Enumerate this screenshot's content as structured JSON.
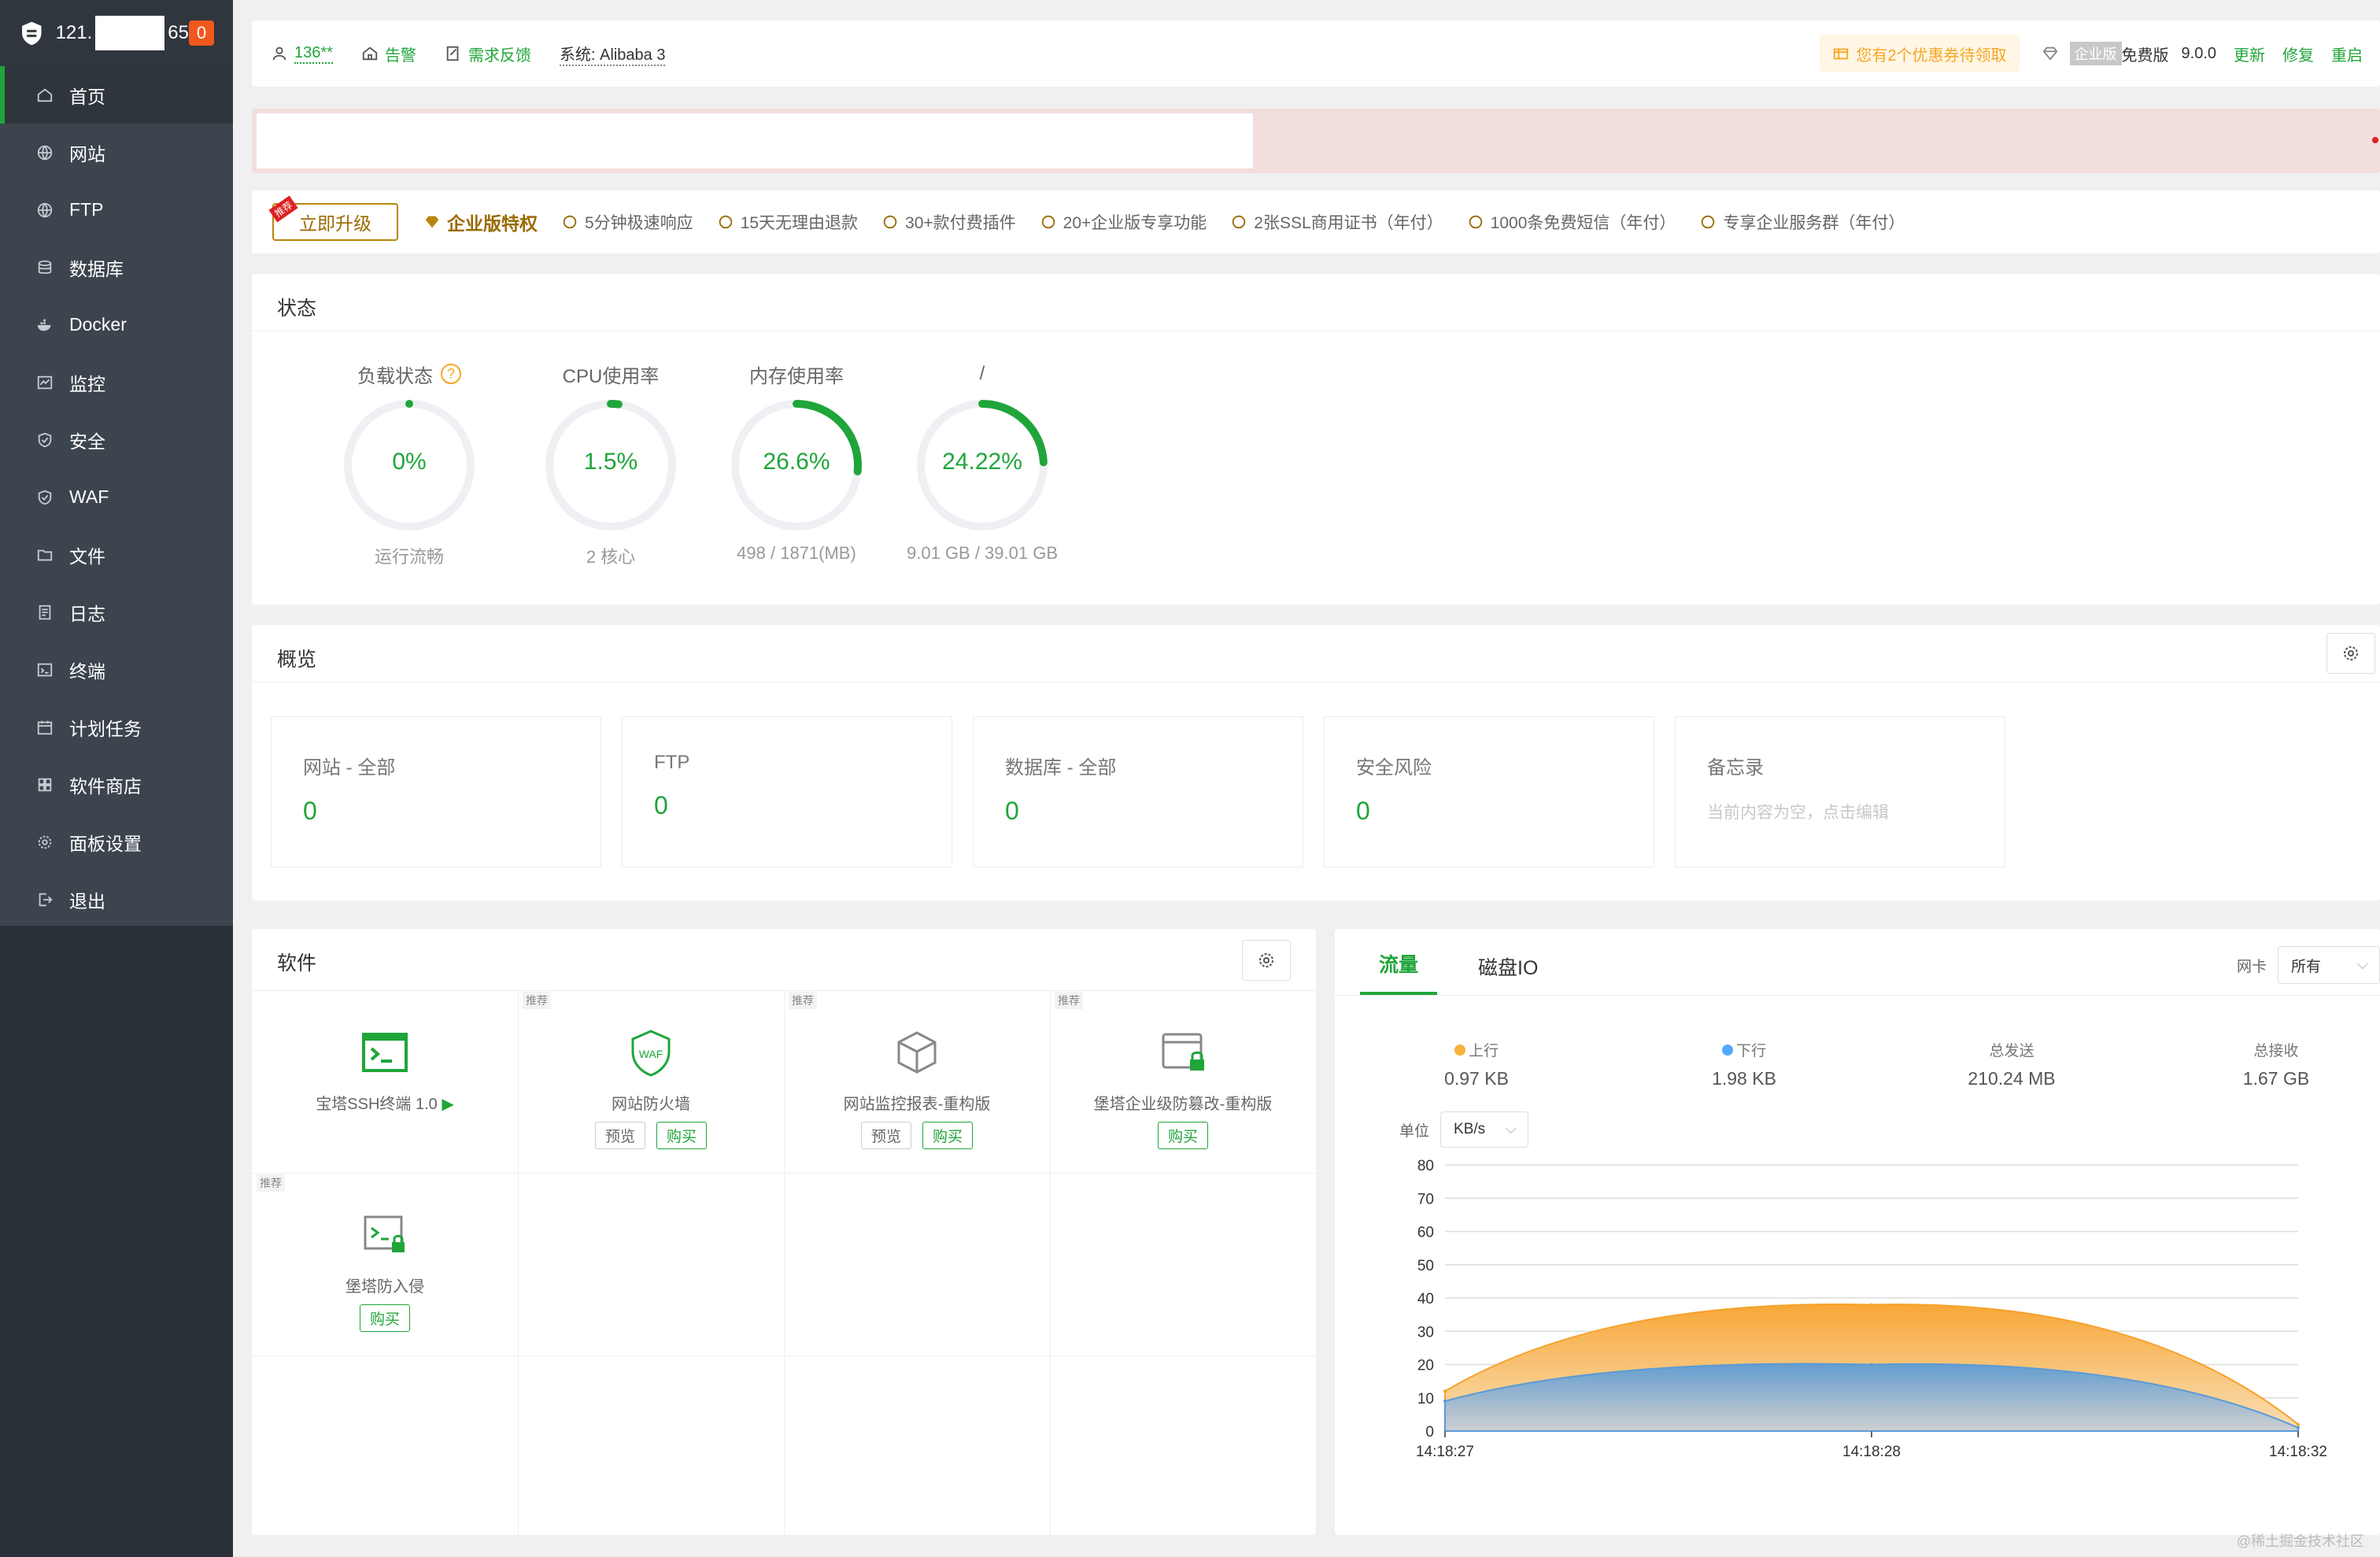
{
  "sidebar": {
    "ip_prefix": "121.",
    "ip_suffix": "65",
    "badge": "0",
    "items": [
      {
        "label": "首页",
        "icon": "home-icon",
        "active": true
      },
      {
        "label": "网站",
        "icon": "globe-icon"
      },
      {
        "label": "FTP",
        "icon": "globe-icon"
      },
      {
        "label": "数据库",
        "icon": "database-icon"
      },
      {
        "label": "Docker",
        "icon": "docker-icon"
      },
      {
        "label": "监控",
        "icon": "monitor-icon"
      },
      {
        "label": "安全",
        "icon": "shield-icon"
      },
      {
        "label": "WAF",
        "icon": "shield-icon"
      },
      {
        "label": "文件",
        "icon": "folder-icon"
      },
      {
        "label": "日志",
        "icon": "log-icon"
      },
      {
        "label": "终端",
        "icon": "terminal-icon"
      },
      {
        "label": "计划任务",
        "icon": "calendar-icon"
      },
      {
        "label": "软件商店",
        "icon": "grid-icon"
      },
      {
        "label": "面板设置",
        "icon": "gear-icon"
      },
      {
        "label": "退出",
        "icon": "logout-icon"
      }
    ]
  },
  "topbar": {
    "user": "136**",
    "alarm": "告警",
    "feedback": "需求反馈",
    "system": "系统:  Alibaba 3",
    "coupon": "您有2个优惠券待领取",
    "enterprise_tag": "企业版",
    "edition": "免费版",
    "version": "9.0.0",
    "update": "更新",
    "repair": "修复",
    "restart": "重启"
  },
  "features": {
    "upgrade": "立即升级",
    "recommend": "推荐",
    "enterprise": "企业版特权",
    "items": [
      "5分钟极速响应",
      "15天无理由退款",
      "30+款付费插件",
      "20+企业版专享功能",
      "2张SSL商用证书（年付）",
      "1000条免费短信（年付）",
      "专享企业服务群（年付）"
    ]
  },
  "status": {
    "title": "状态",
    "gauges": [
      {
        "title": "负载状态",
        "value": "0%",
        "fraction": 0.0,
        "sub": "运行流畅",
        "help": "?"
      },
      {
        "title": "CPU使用率",
        "value": "1.5%",
        "fraction": 0.015,
        "sub": "2 核心"
      },
      {
        "title": "内存使用率",
        "value": "26.6%",
        "fraction": 0.266,
        "sub": "498 / 1871(MB)"
      },
      {
        "title": "/",
        "value": "24.22%",
        "fraction": 0.2422,
        "sub": "9.01 GB / 39.01 GB"
      }
    ]
  },
  "overview": {
    "title": "概览",
    "cards": [
      {
        "label": "网站 - 全部",
        "value": "0"
      },
      {
        "label": "FTP",
        "value": "0"
      },
      {
        "label": "数据库 - 全部",
        "value": "0"
      },
      {
        "label": "安全风险",
        "value": "0"
      },
      {
        "label": "备忘录",
        "memo": "当前内容为空，点击编辑"
      }
    ]
  },
  "software": {
    "title": "软件",
    "items": [
      {
        "name": "宝塔SSH终端 1.0",
        "icon": "terminal-icon",
        "tag": ""
      },
      {
        "name": "网站防火墙",
        "icon": "waf-shield-icon",
        "tag": "推荐",
        "preview": "预览",
        "buy": "购买"
      },
      {
        "name": "网站监控报表-重构版",
        "icon": "cube-icon",
        "tag": "推荐",
        "preview": "预览",
        "buy": "购买"
      },
      {
        "name": "堡塔企业级防篡改-重构版",
        "icon": "lock-window-icon",
        "tag": "推荐",
        "buy": "购买"
      },
      {
        "name": "堡塔防入侵",
        "icon": "terminal-lock-icon",
        "tag": "推荐",
        "buy": "购买"
      }
    ]
  },
  "traffic": {
    "tabs": [
      "流量",
      "磁盘IO"
    ],
    "nic_label": "网卡",
    "nic_value": "所有",
    "stats": [
      {
        "label": "上行",
        "value": "0.97 KB",
        "color": "#f7b23b"
      },
      {
        "label": "下行",
        "value": "1.98 KB",
        "color": "#52a9ff"
      },
      {
        "label": "总发送",
        "value": "210.24 MB"
      },
      {
        "label": "总接收",
        "value": "1.67 GB"
      }
    ],
    "unit_label": "单位",
    "unit_value": "KB/s"
  },
  "chart_data": {
    "type": "area",
    "x": [
      "14:18:27",
      "14:18:28",
      "14:18:32"
    ],
    "y_ticks": [
      0,
      10,
      20,
      30,
      40,
      50,
      60,
      70,
      80
    ],
    "ylim": [
      0,
      80
    ],
    "series": [
      {
        "name": "上行",
        "color": "#f7a22c",
        "values": [
          12,
          38,
          2
        ]
      },
      {
        "name": "下行",
        "color": "#5b9bd5",
        "values": [
          9,
          20,
          1
        ]
      }
    ]
  },
  "watermark": "@稀土掘金技术社区"
}
